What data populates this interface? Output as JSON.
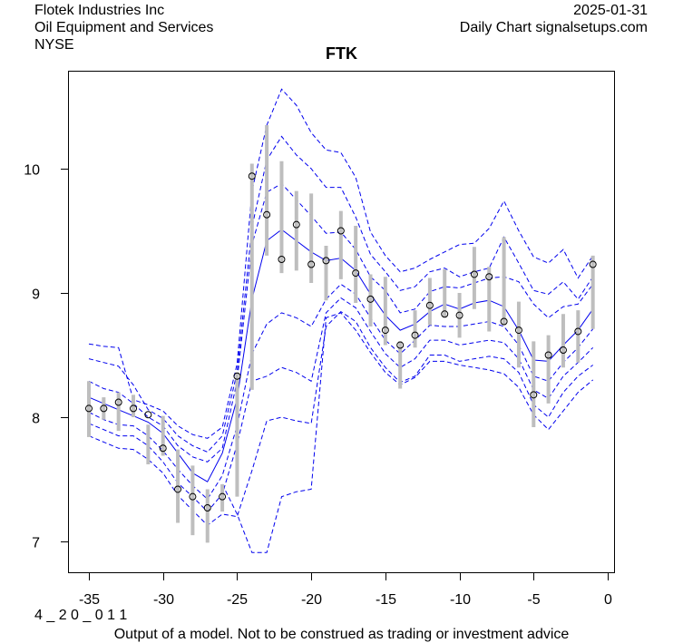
{
  "header": {
    "company": "Flotek Industries Inc",
    "sector": "Oil Equipment and Services",
    "exchange": "NYSE",
    "date": "2025-01-31",
    "source": "Daily Chart signalsetups.com"
  },
  "footer": {
    "code": "4 _ 2 0 _ 0 1 1",
    "disclaimer": "Output of a model. Not to be construed as trading or investment advice"
  },
  "colors": {
    "band": "#0000ee",
    "range_bar": "#bebebe",
    "point": "#000000"
  },
  "chart_data": {
    "type": "line",
    "title": "FTK",
    "xlabel": "",
    "ylabel": "",
    "xlim": [
      -36.5,
      0.5
    ],
    "ylim": [
      6.75,
      10.78
    ],
    "grid": false,
    "x_ticks": [
      -35,
      -30,
      -25,
      -20,
      -15,
      -10,
      -5,
      0
    ],
    "x_tick_labels": [
      "-35",
      "-30",
      "-25",
      "-20",
      "-15",
      "-10",
      "-5",
      "0"
    ],
    "y_ticks": [
      7,
      8,
      9,
      10
    ],
    "y_tick_labels": [
      "7",
      "8",
      "9",
      "10"
    ],
    "x": [
      -35,
      -34,
      -33,
      -32,
      -31,
      -30,
      -29,
      -28,
      -27,
      -26,
      -25,
      -24,
      -23,
      -22,
      -21,
      -20,
      -19,
      -18,
      -17,
      -16,
      -15,
      -14,
      -13,
      -12,
      -11,
      -10,
      -9,
      -8,
      -7,
      -6,
      -5,
      -4,
      -3,
      -2,
      -1
    ],
    "close": [
      8.07,
      8.07,
      8.12,
      8.07,
      8.02,
      7.75,
      7.42,
      7.36,
      7.27,
      7.36,
      8.33,
      9.94,
      9.63,
      9.27,
      9.55,
      9.23,
      9.26,
      9.5,
      9.16,
      8.95,
      8.7,
      8.58,
      8.66,
      8.9,
      8.83,
      8.82,
      9.15,
      9.13,
      8.77,
      8.7,
      8.18,
      8.5,
      8.54,
      8.69,
      9.23
    ],
    "high": [
      8.29,
      8.16,
      8.2,
      8.18,
      7.94,
      8.01,
      7.74,
      7.61,
      7.42,
      7.46,
      8.36,
      10.04,
      10.35,
      10.06,
      9.82,
      9.8,
      9.38,
      9.66,
      9.54,
      9.15,
      9.13,
      8.61,
      8.86,
      9.12,
      9.19,
      9.0,
      9.37,
      9.21,
      9.45,
      8.93,
      8.61,
      8.66,
      8.83,
      8.86,
      9.3
    ],
    "low": [
      7.84,
      7.98,
      7.89,
      8.0,
      7.62,
      7.69,
      7.15,
      7.05,
      6.99,
      7.24,
      7.36,
      8.22,
      9.3,
      9.16,
      9.18,
      9.08,
      8.94,
      9.11,
      8.92,
      8.73,
      8.58,
      8.23,
      8.56,
      8.74,
      8.8,
      8.64,
      8.87,
      8.69,
      8.74,
      8.4,
      7.92,
      8.11,
      8.4,
      8.44,
      8.71
    ],
    "series": [
      {
        "name": "upper_3",
        "style": "dashed",
        "values": [
          8.59,
          8.57,
          8.56,
          8.14,
          8.1,
          8.05,
          7.93,
          7.86,
          7.83,
          7.92,
          8.43,
          9.82,
          10.35,
          10.64,
          10.51,
          10.29,
          10.15,
          10.13,
          9.93,
          9.49,
          9.3,
          9.17,
          9.2,
          9.27,
          9.33,
          9.39,
          9.4,
          9.52,
          9.74,
          9.5,
          9.29,
          9.24,
          9.35,
          9.12,
          9.3
        ]
      },
      {
        "name": "upper_2",
        "style": "dashed",
        "values": [
          8.47,
          8.44,
          8.41,
          8.26,
          8.06,
          7.99,
          7.85,
          7.77,
          7.72,
          7.85,
          8.36,
          9.53,
          10.07,
          10.26,
          10.11,
          10.0,
          9.85,
          9.85,
          9.61,
          9.31,
          9.17,
          9.02,
          9.05,
          9.17,
          9.2,
          9.13,
          9.17,
          9.2,
          9.45,
          9.24,
          9.02,
          8.99,
          9.09,
          8.95,
          9.13
        ]
      },
      {
        "name": "upper_1",
        "style": "dashed",
        "values": [
          8.29,
          8.23,
          8.2,
          8.11,
          8.0,
          7.93,
          7.77,
          7.68,
          7.64,
          7.75,
          8.29,
          9.39,
          9.81,
          9.88,
          9.75,
          9.62,
          9.48,
          9.49,
          9.35,
          9.13,
          9.02,
          8.84,
          8.87,
          9.01,
          9.05,
          9.04,
          9.08,
          9.12,
          9.13,
          9.09,
          8.91,
          8.8,
          8.89,
          8.91,
          9.07
        ]
      },
      {
        "name": "center",
        "style": "solid",
        "values": [
          8.16,
          8.11,
          8.06,
          8.01,
          7.96,
          7.87,
          7.71,
          7.55,
          7.48,
          7.71,
          8.15,
          8.95,
          9.42,
          9.51,
          9.42,
          9.33,
          9.26,
          9.28,
          9.18,
          8.99,
          8.82,
          8.7,
          8.75,
          8.85,
          8.91,
          8.87,
          8.92,
          8.94,
          8.89,
          8.7,
          8.46,
          8.45,
          8.58,
          8.7,
          8.87
        ]
      },
      {
        "name": "lower_1",
        "style": "dashed",
        "values": [
          8.04,
          7.98,
          7.94,
          7.93,
          7.85,
          7.73,
          7.58,
          7.45,
          7.34,
          7.53,
          7.93,
          8.51,
          8.75,
          8.84,
          8.8,
          8.73,
          8.95,
          9.07,
          8.99,
          8.8,
          8.62,
          8.51,
          8.62,
          8.74,
          8.73,
          8.73,
          8.75,
          8.77,
          8.73,
          8.58,
          8.33,
          8.29,
          8.44,
          8.56,
          8.71
        ]
      },
      {
        "name": "lower_2",
        "style": "dashed",
        "values": [
          7.95,
          7.9,
          7.85,
          7.85,
          7.77,
          7.64,
          7.47,
          7.36,
          7.24,
          7.38,
          7.78,
          8.29,
          8.33,
          8.4,
          8.36,
          8.29,
          8.84,
          8.96,
          8.88,
          8.69,
          8.51,
          8.4,
          8.47,
          8.62,
          8.62,
          8.58,
          8.6,
          8.62,
          8.6,
          8.47,
          8.22,
          8.15,
          8.33,
          8.44,
          8.56
        ]
      },
      {
        "name": "lower_3",
        "style": "dashed",
        "values": [
          7.85,
          7.8,
          7.75,
          7.74,
          7.66,
          7.55,
          7.37,
          7.25,
          7.13,
          7.22,
          7.2,
          7.57,
          7.97,
          8.0,
          7.97,
          7.95,
          8.73,
          8.85,
          8.77,
          8.56,
          8.4,
          8.28,
          8.33,
          8.5,
          8.5,
          8.45,
          8.47,
          8.49,
          8.47,
          8.36,
          8.1,
          8.0,
          8.2,
          8.33,
          8.42
        ]
      },
      {
        "name": "lower_4",
        "style": "dashed",
        "values": [
          null,
          null,
          null,
          null,
          null,
          null,
          null,
          null,
          null,
          7.46,
          7.22,
          6.91,
          6.91,
          7.36,
          7.4,
          7.42,
          8.8,
          8.84,
          8.7,
          8.52,
          8.36,
          8.26,
          8.32,
          8.45,
          8.45,
          8.42,
          8.4,
          8.38,
          8.35,
          8.24,
          8.02,
          7.9,
          8.05,
          8.2,
          8.3
        ]
      }
    ]
  }
}
